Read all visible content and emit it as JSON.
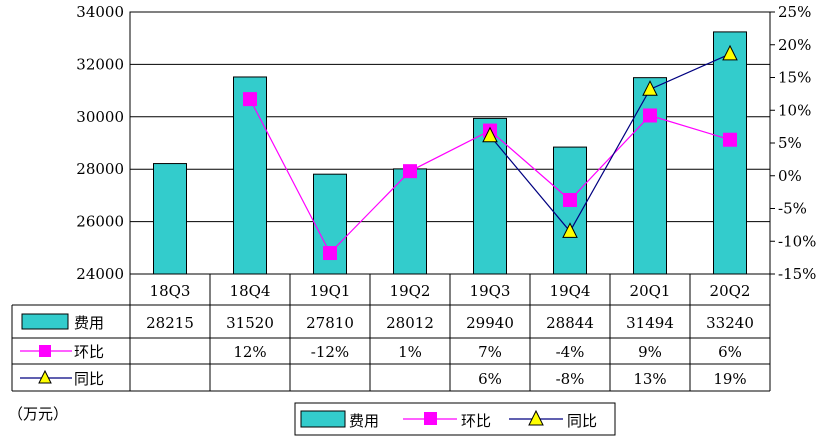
{
  "chart_data": {
    "type": "bar",
    "categories": [
      "18Q3",
      "18Q4",
      "19Q1",
      "19Q2",
      "19Q3",
      "19Q4",
      "20Q1",
      "20Q2"
    ],
    "unit_label": "（万元）",
    "y_left": {
      "min": 24000,
      "max": 34000,
      "step": 2000,
      "ticks": [
        "24000",
        "26000",
        "28000",
        "30000",
        "32000",
        "34000"
      ]
    },
    "y_right": {
      "min": -15,
      "max": 25,
      "step": 5,
      "ticks": [
        "-15%",
        "-10%",
        "-5%",
        "0%",
        "5%",
        "10%",
        "15%",
        "20%",
        "25%"
      ]
    },
    "grid": true,
    "legend_position": "bottom",
    "series": [
      {
        "name": "费用",
        "type": "bar",
        "axis": "left",
        "color": "#33CCCC",
        "values": [
          28215,
          31520,
          27810,
          28012,
          29940,
          28844,
          31494,
          33240
        ],
        "labels": [
          "28215",
          "31520",
          "27810",
          "28012",
          "29940",
          "28844",
          "31494",
          "33240"
        ]
      },
      {
        "name": "环比",
        "type": "line",
        "marker": "square",
        "axis": "right",
        "color": "#FF00FF",
        "values": [
          null,
          11.7,
          -11.8,
          0.7,
          6.9,
          -3.7,
          9.2,
          5.5
        ],
        "labels": [
          "",
          "12%",
          "-12%",
          "1%",
          "7%",
          "-4%",
          "9%",
          "6%"
        ]
      },
      {
        "name": "同比",
        "type": "line",
        "marker": "triangle",
        "axis": "right",
        "color": "#000080",
        "marker_color": "#FFFF00",
        "values": [
          null,
          null,
          null,
          null,
          6.1,
          -8.5,
          13.2,
          18.6
        ],
        "labels": [
          "",
          "",
          "",
          "",
          "6%",
          "-8%",
          "13%",
          "19%"
        ]
      }
    ]
  }
}
